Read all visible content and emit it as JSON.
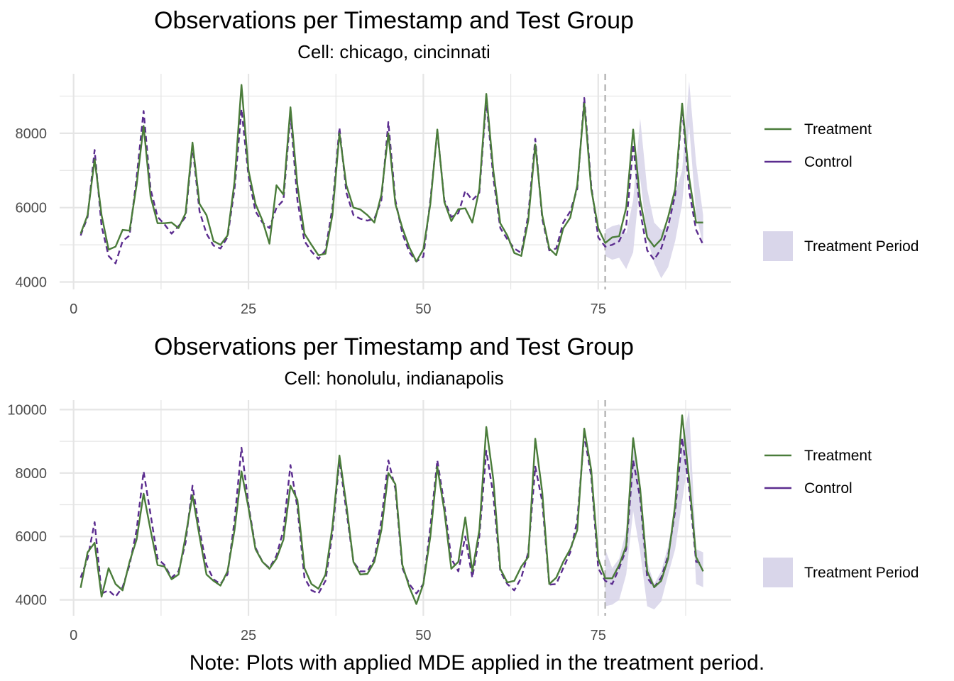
{
  "note": "Note: Plots with applied MDE applied in the treatment period.",
  "colors": {
    "treatment": "#4a7c3a",
    "control": "#5b2c8f",
    "band": "#d9d6ea",
    "grid": "#e5e5e5",
    "vline": "#b8b8b8"
  },
  "chart_data": [
    {
      "type": "line",
      "title": "Observations per Timestamp and Test Group",
      "subtitle": "Cell: chicago, cincinnati",
      "xlim": [
        -2,
        94
      ],
      "ylim": [
        3800,
        9600
      ],
      "xticks": [
        0,
        25,
        50,
        75
      ],
      "yticks": [
        4000,
        6000,
        8000
      ],
      "treatment_start": 76,
      "legend": {
        "position": "right",
        "items": [
          "Treatment",
          "Control",
          "Treatment Period"
        ]
      },
      "series": [
        {
          "name": "Treatment",
          "style": "solid",
          "x_start": 1,
          "values": [
            5300,
            5800,
            7300,
            5800,
            4870,
            4950,
            5400,
            5380,
            6600,
            8200,
            6300,
            5580,
            5580,
            5600,
            5450,
            5850,
            7750,
            6100,
            5800,
            5100,
            5000,
            5250,
            6700,
            9300,
            7000,
            6100,
            5650,
            5030,
            6600,
            6350,
            8700,
            6600,
            5300,
            5000,
            4720,
            4760,
            5800,
            8000,
            6600,
            6000,
            5950,
            5800,
            5600,
            6350,
            8000,
            6100,
            5450,
            4930,
            4550,
            4880,
            6100,
            8100,
            6150,
            5640,
            5960,
            5980,
            5600,
            6500,
            9060,
            7000,
            5580,
            5250,
            4780,
            4700,
            5650,
            7700,
            5800,
            4900,
            4720,
            5440,
            5730,
            6600,
            8800,
            6500,
            5450,
            5050,
            5200,
            5230,
            6000,
            8100,
            6200,
            5200,
            4950,
            5150,
            5750,
            6500,
            8800,
            6800,
            5600,
            5600
          ]
        },
        {
          "name": "Control",
          "style": "dashed",
          "x_start": 1,
          "values": [
            5250,
            5750,
            7550,
            5500,
            4700,
            4500,
            5100,
            5250,
            6800,
            8600,
            6500,
            5750,
            5550,
            5300,
            5500,
            5750,
            7650,
            5900,
            5300,
            4980,
            4900,
            5200,
            6500,
            8650,
            6850,
            5900,
            5600,
            5450,
            6000,
            6200,
            8500,
            6200,
            5100,
            4820,
            4620,
            4850,
            6000,
            8150,
            6400,
            5800,
            5700,
            5650,
            5700,
            6200,
            8300,
            6200,
            5300,
            4800,
            4550,
            4680,
            6200,
            8050,
            6200,
            5750,
            5850,
            6450,
            6200,
            6400,
            8900,
            6800,
            5450,
            5150,
            4900,
            4780,
            5800,
            7850,
            5700,
            4850,
            4900,
            5600,
            5900,
            6500,
            8950,
            6600,
            5200,
            4950,
            5000,
            5100,
            5500,
            7700,
            5900,
            4850,
            4600,
            4900,
            5500,
            6350,
            8700,
            6450,
            5400,
            5000
          ]
        },
        {
          "name": "Treatment Period",
          "style": "band",
          "x_start": 76,
          "lower": [
            4700,
            4600,
            4650,
            4350,
            4800,
            6800,
            5200,
            4500,
            4100,
            4400,
            5100,
            6100,
            8200,
            5800,
            5000
          ],
          "upper": [
            5400,
            5500,
            5550,
            5300,
            6200,
            8400,
            6500,
            5600,
            5400,
            5500,
            6400,
            7000,
            9400,
            7200,
            5800
          ]
        }
      ]
    },
    {
      "type": "line",
      "title": "Observations per Timestamp and Test Group",
      "subtitle": "Cell: honolulu, indianapolis",
      "xlim": [
        -2,
        94
      ],
      "ylim": [
        3500,
        10300
      ],
      "xticks": [
        0,
        25,
        50,
        75
      ],
      "yticks": [
        4000,
        6000,
        8000,
        10000
      ],
      "treatment_start": 76,
      "legend": {
        "position": "right",
        "items": [
          "Treatment",
          "Control",
          "Treatment Period"
        ]
      },
      "series": [
        {
          "name": "Treatment",
          "style": "solid",
          "x_start": 1,
          "values": [
            4380,
            5500,
            5800,
            4100,
            5000,
            4500,
            4300,
            5200,
            5900,
            7350,
            6200,
            5100,
            5050,
            4650,
            4800,
            6000,
            7300,
            6000,
            4800,
            4600,
            4450,
            4900,
            6200,
            8050,
            6900,
            5600,
            5200,
            4980,
            5300,
            5900,
            7600,
            7150,
            5000,
            4500,
            4350,
            4800,
            6300,
            8550,
            7000,
            5200,
            4800,
            4820,
            5200,
            6200,
            8000,
            7650,
            5100,
            4400,
            3870,
            4500,
            6000,
            8200,
            6800,
            4980,
            5200,
            6600,
            4900,
            6200,
            9450,
            7800,
            4980,
            4550,
            4600,
            5050,
            5350,
            9080,
            7400,
            4500,
            4700,
            5200,
            5600,
            6200,
            9400,
            8100,
            5300,
            4680,
            4680,
            5100,
            5700,
            9100,
            7500,
            4900,
            4400,
            4600,
            5300,
            7000,
            9820,
            7800,
            5350,
            4900
          ]
        },
        {
          "name": "Control",
          "style": "dashed",
          "x_start": 1,
          "values": [
            4700,
            5300,
            6450,
            4200,
            4300,
            4100,
            4400,
            5100,
            6200,
            8050,
            6700,
            5300,
            5100,
            4700,
            4900,
            5800,
            7600,
            6200,
            5100,
            4650,
            4500,
            4800,
            6500,
            8800,
            7000,
            5650,
            5200,
            5000,
            5400,
            6200,
            8250,
            6900,
            4700,
            4300,
            4200,
            4600,
            6100,
            8400,
            6800,
            5200,
            4900,
            4900,
            5300,
            6500,
            8400,
            7500,
            5000,
            4500,
            4200,
            4500,
            6300,
            8400,
            7000,
            5300,
            4900,
            6000,
            4700,
            6000,
            8700,
            7300,
            4900,
            4500,
            4300,
            4700,
            5500,
            8200,
            7100,
            4480,
            4500,
            5000,
            5500,
            6500,
            9200,
            7900,
            5000,
            4600,
            4500,
            5000,
            5600,
            8400,
            7200,
            4700,
            4400,
            4700,
            5400,
            6800,
            9100,
            7500,
            5200,
            5150
          ]
        },
        {
          "name": "Treatment Period",
          "style": "band",
          "x_start": 76,
          "lower": [
            3800,
            3850,
            4000,
            4800,
            6800,
            5500,
            3800,
            3700,
            3950,
            4800,
            5600,
            7100,
            8600,
            4500,
            4400
          ],
          "upper": [
            5600,
            5000,
            5300,
            6200,
            9200,
            7700,
            5200,
            4500,
            4900,
            5700,
            6900,
            9000,
            10000,
            5600,
            5500
          ]
        }
      ]
    }
  ]
}
